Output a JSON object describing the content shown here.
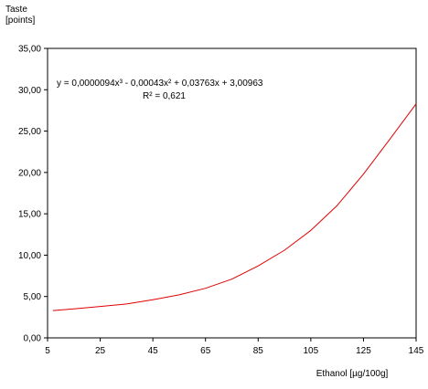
{
  "chart_data": {
    "type": "line",
    "y_axis_title": [
      "Taste",
      "[points]"
    ],
    "x_axis_title": "Ethanol [µg/100g]",
    "xlim": [
      5,
      145
    ],
    "ylim": [
      0,
      35
    ],
    "x_ticks": [
      {
        "value": 5,
        "label": "5"
      },
      {
        "value": 25,
        "label": "25"
      },
      {
        "value": 45,
        "label": "45"
      },
      {
        "value": 65,
        "label": "65"
      },
      {
        "value": 85,
        "label": "85"
      },
      {
        "value": 105,
        "label": "105"
      },
      {
        "value": 125,
        "label": "125"
      },
      {
        "value": 145,
        "label": "145"
      }
    ],
    "y_ticks": [
      {
        "value": 0,
        "label": "0,00"
      },
      {
        "value": 5,
        "label": "5,00"
      },
      {
        "value": 10,
        "label": "10,00"
      },
      {
        "value": 15,
        "label": "15,00"
      },
      {
        "value": 20,
        "label": "20,00"
      },
      {
        "value": 25,
        "label": "25,00"
      },
      {
        "value": 30,
        "label": "30,00"
      },
      {
        "value": 35,
        "label": "35,00"
      }
    ],
    "grid": false,
    "legend": "none",
    "series": [
      {
        "color": "#e00000",
        "x": [
          7,
          15,
          25,
          35,
          45,
          55,
          65,
          75,
          85,
          95,
          105,
          115,
          125,
          135,
          145
        ],
        "y": [
          3.3,
          3.5,
          3.8,
          4.1,
          4.6,
          5.2,
          6.0,
          7.1,
          8.7,
          10.6,
          13.0,
          16.0,
          19.8,
          24.0,
          28.3
        ]
      }
    ],
    "annotations": {
      "equation": "y = 0,0000094x³ - 0,00043x² + 0,03763x + 3,00963",
      "r_squared": "R² = 0,621"
    }
  }
}
